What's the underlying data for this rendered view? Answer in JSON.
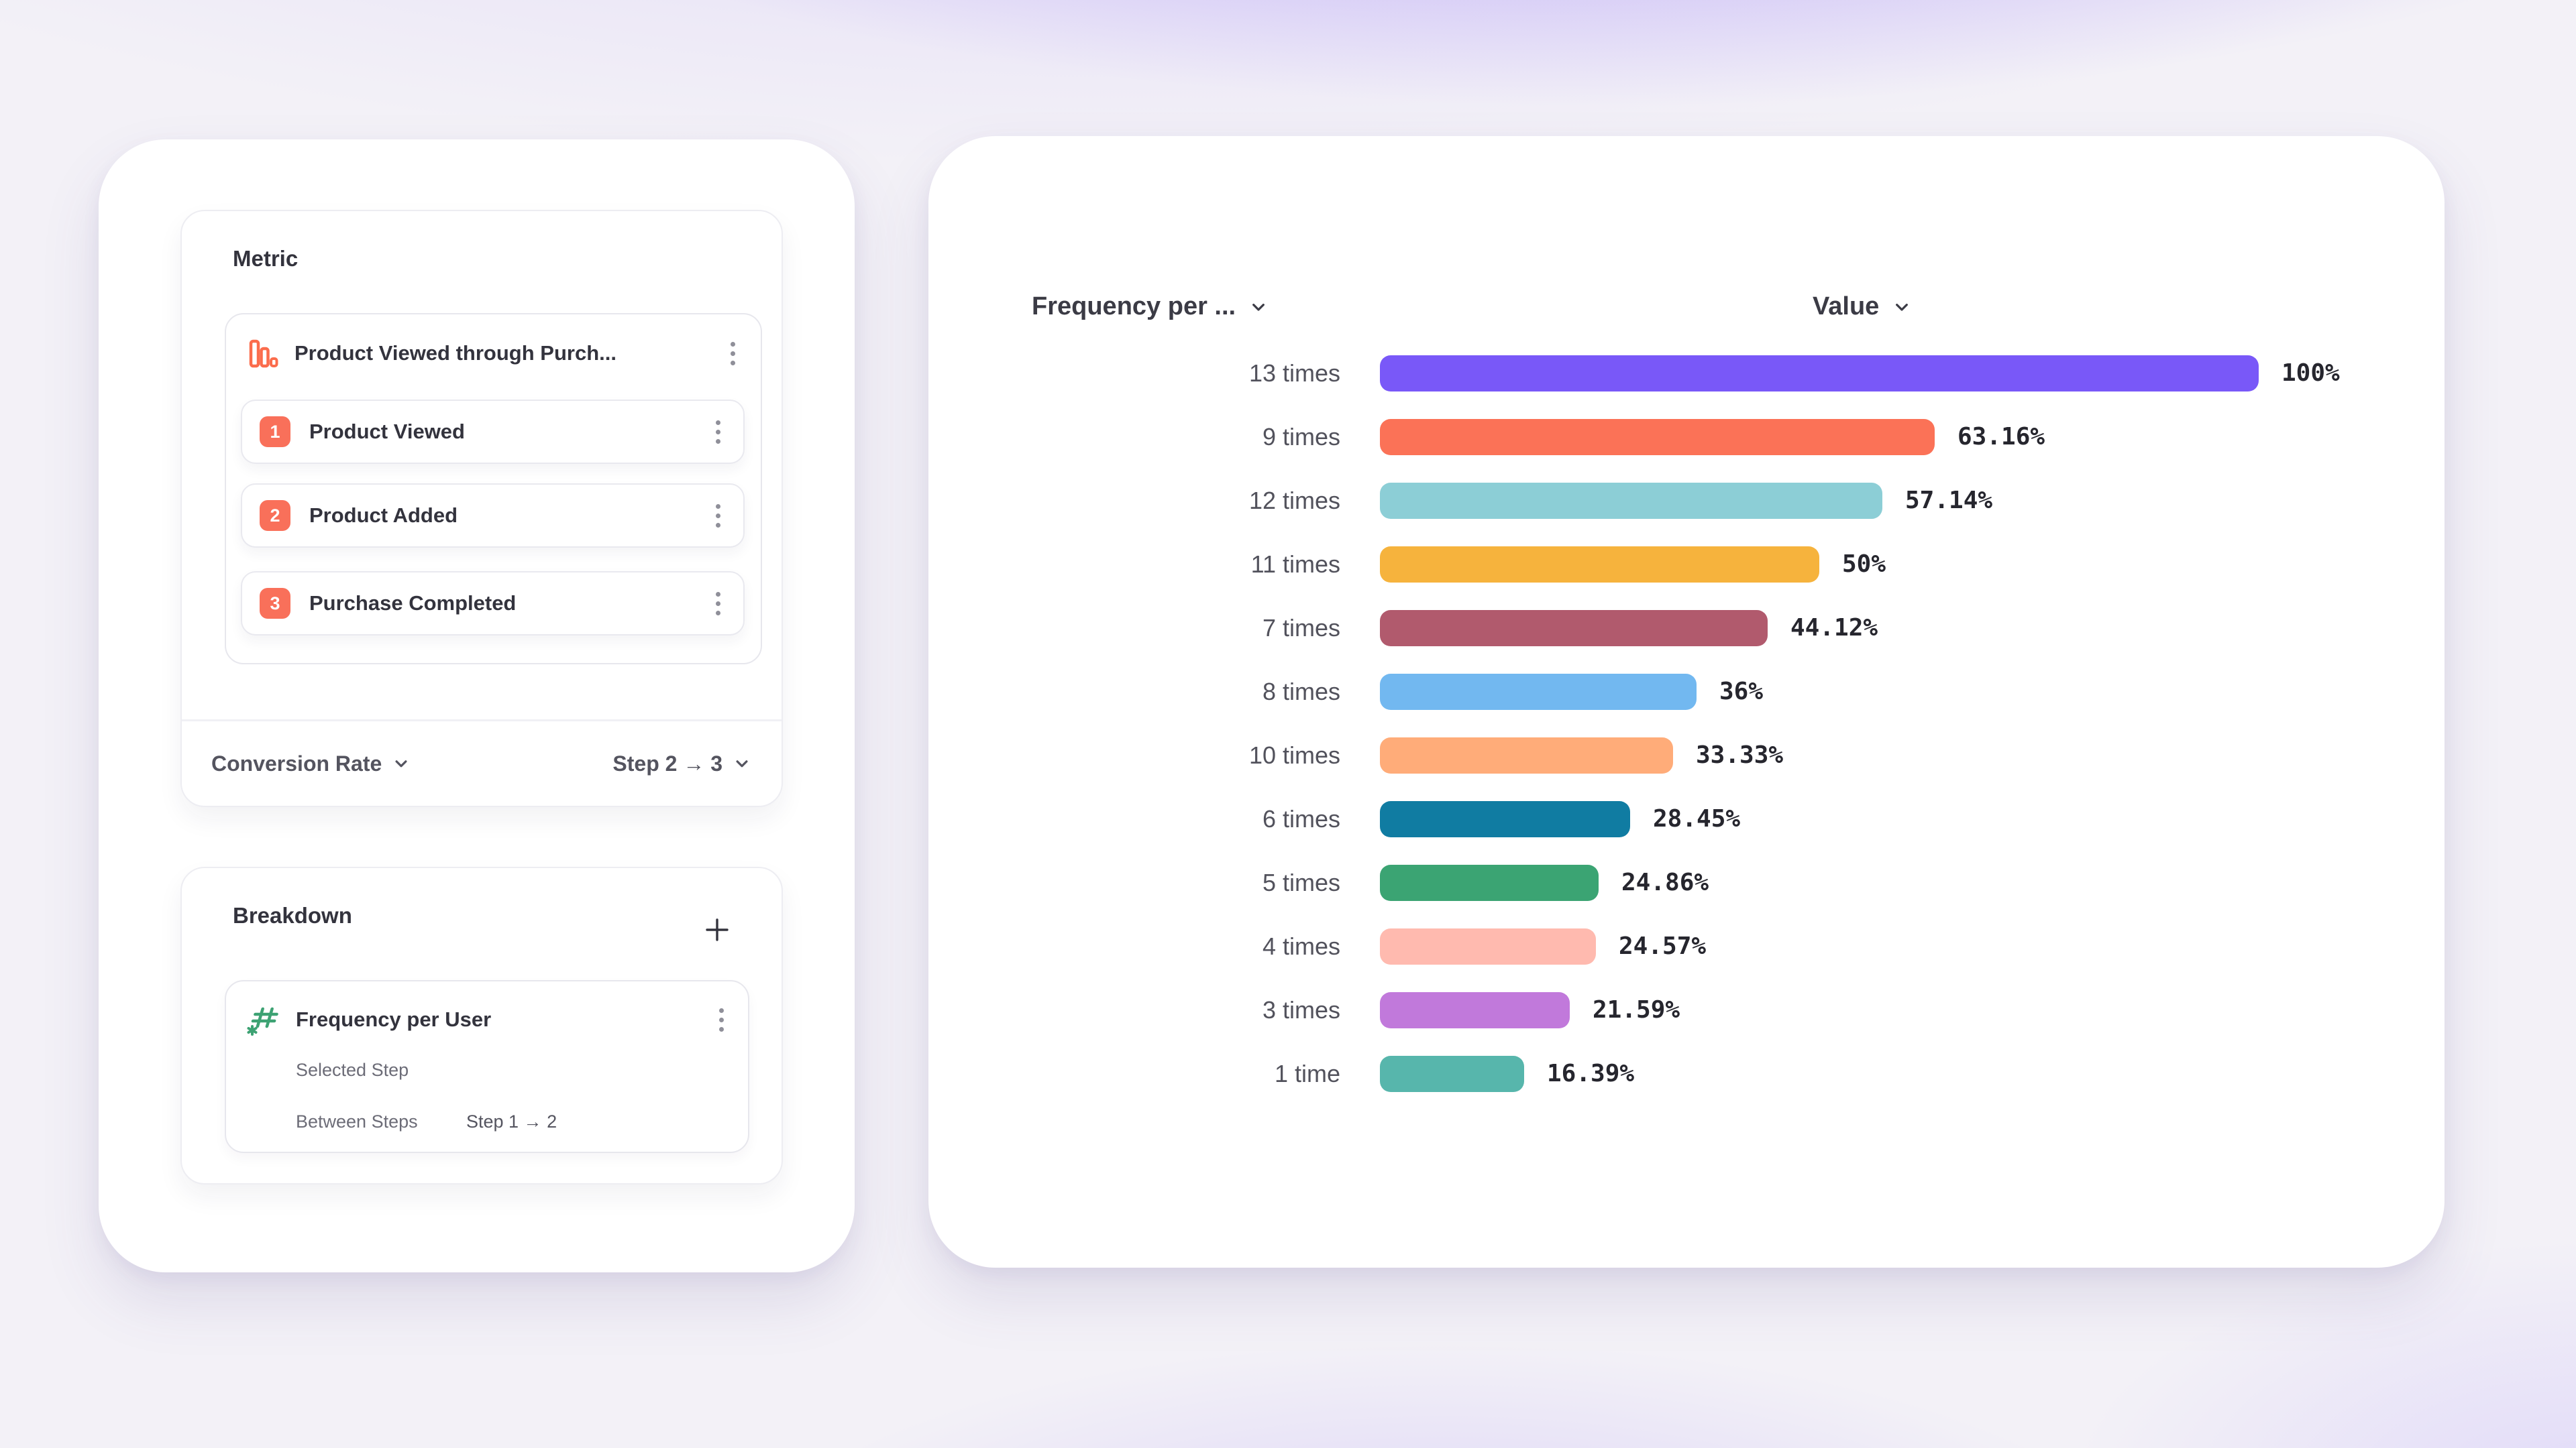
{
  "metric_panel": {
    "title": "Metric",
    "funnel": {
      "name": "Product Viewed through Purch...",
      "steps": [
        {
          "number": "1",
          "label": "Product Viewed"
        },
        {
          "number": "2",
          "label": "Product Added"
        },
        {
          "number": "3",
          "label": "Purchase Completed"
        }
      ]
    },
    "footer": {
      "measurement_label": "Conversion Rate",
      "step_range_label": "Step 2 → 3"
    }
  },
  "breakdown_panel": {
    "title": "Breakdown",
    "item": {
      "name": "Frequency per User",
      "rows": [
        {
          "label": "Selected Step",
          "value": ""
        },
        {
          "label": "Between Steps",
          "value": "Step 1 → 2"
        }
      ]
    }
  },
  "chart_data": {
    "type": "bar",
    "orientation": "horizontal",
    "title": "",
    "column_headers": [
      "Frequency per ...",
      "Value"
    ],
    "categories": [
      "13 times",
      "9 times",
      "12 times",
      "11 times",
      "7 times",
      "8 times",
      "10 times",
      "6 times",
      "5 times",
      "4 times",
      "3 times",
      "1 time"
    ],
    "values": [
      100,
      63.16,
      57.14,
      50,
      44.12,
      36,
      33.33,
      28.45,
      24.86,
      24.57,
      21.59,
      16.39
    ],
    "value_labels": [
      "100%",
      "63.16%",
      "57.14%",
      "50%",
      "44.12%",
      "36%",
      "33.33%",
      "28.45%",
      "24.86%",
      "24.57%",
      "21.59%",
      "16.39%"
    ],
    "colors": [
      "#7958F8",
      "#FB7257",
      "#8CCED6",
      "#F6B33D",
      "#B15A6D",
      "#72B8F0",
      "#FFAC79",
      "#107CA2",
      "#3BA473",
      "#FFBAAF",
      "#C179DB",
      "#57B6AC"
    ],
    "xlim": [
      0,
      100
    ],
    "grid": false,
    "legend": false
  },
  "colors": {
    "step_badge": "#F9705A",
    "funnel_icon": "#FB6C4C",
    "hash_icon": "#3DA273",
    "background_accent": "#8666F5"
  },
  "icons": {
    "funnel-chart": "three descending outlined bars",
    "kebab-menu": "⋮",
    "plus": "+",
    "chevron-down": "⌄",
    "hash-sparkle": "#✳"
  }
}
